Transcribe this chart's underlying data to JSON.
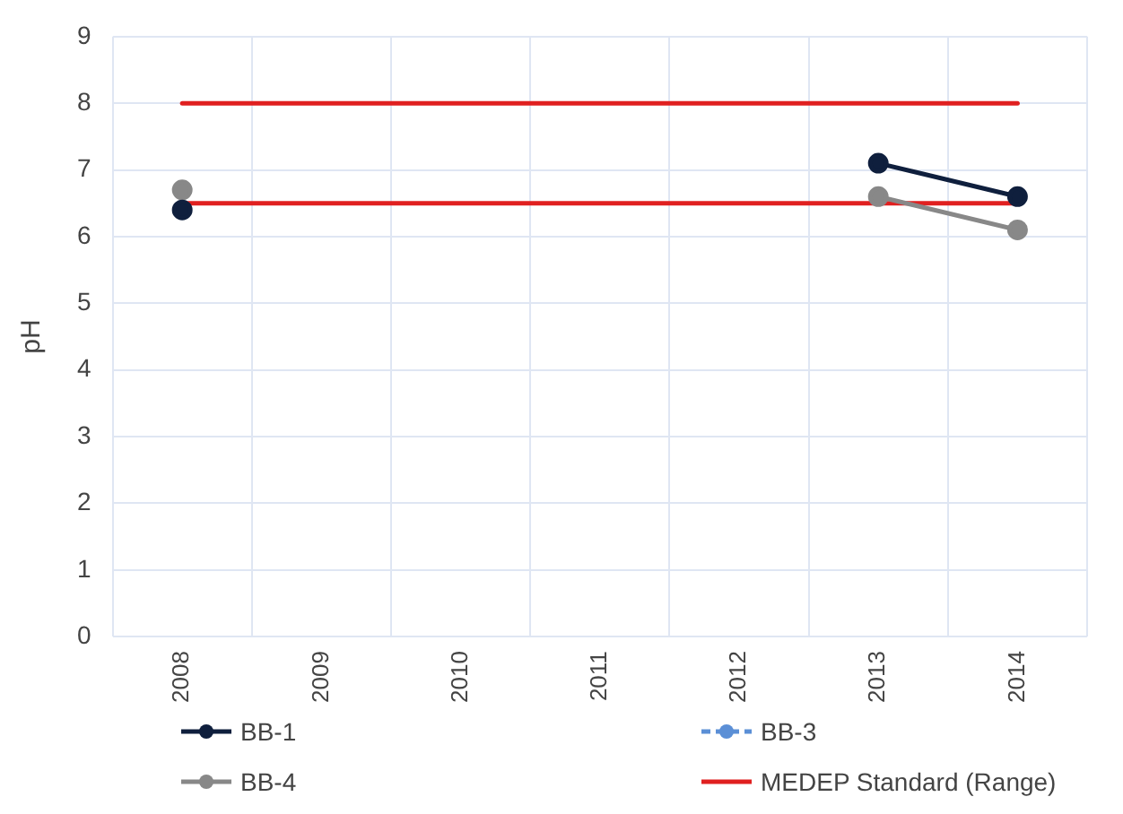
{
  "chart_data": {
    "type": "line",
    "ylabel": "pH",
    "categories": [
      "2008",
      "2009",
      "2010",
      "2011",
      "2012",
      "2013",
      "2014"
    ],
    "ylim": [
      0,
      9
    ],
    "yticks": [
      0,
      1,
      2,
      3,
      4,
      5,
      6,
      7,
      8,
      9
    ],
    "grid": true,
    "legend": "bottom",
    "marker": "circle",
    "series": [
      {
        "name": "BB-1",
        "color": "#0f1f3d",
        "values": [
          6.4,
          null,
          null,
          null,
          null,
          7.1,
          6.6
        ]
      },
      {
        "name": "BB-3",
        "color": "#5b8fd6",
        "line_style": "dashed",
        "values": [
          null,
          null,
          null,
          null,
          null,
          null,
          null
        ]
      },
      {
        "name": "BB-4",
        "color": "#888888",
        "values": [
          6.7,
          null,
          null,
          null,
          null,
          6.6,
          6.1
        ]
      },
      {
        "name": "MEDEP Standard (Range)",
        "color": "#e02020",
        "marker": "none",
        "values": [
          8,
          8,
          8,
          8,
          8,
          8,
          8
        ]
      },
      {
        "color": "#e02020",
        "marker": "none",
        "values": [
          6.5,
          6.5,
          6.5,
          6.5,
          6.5,
          6.5,
          6.5
        ]
      }
    ]
  }
}
